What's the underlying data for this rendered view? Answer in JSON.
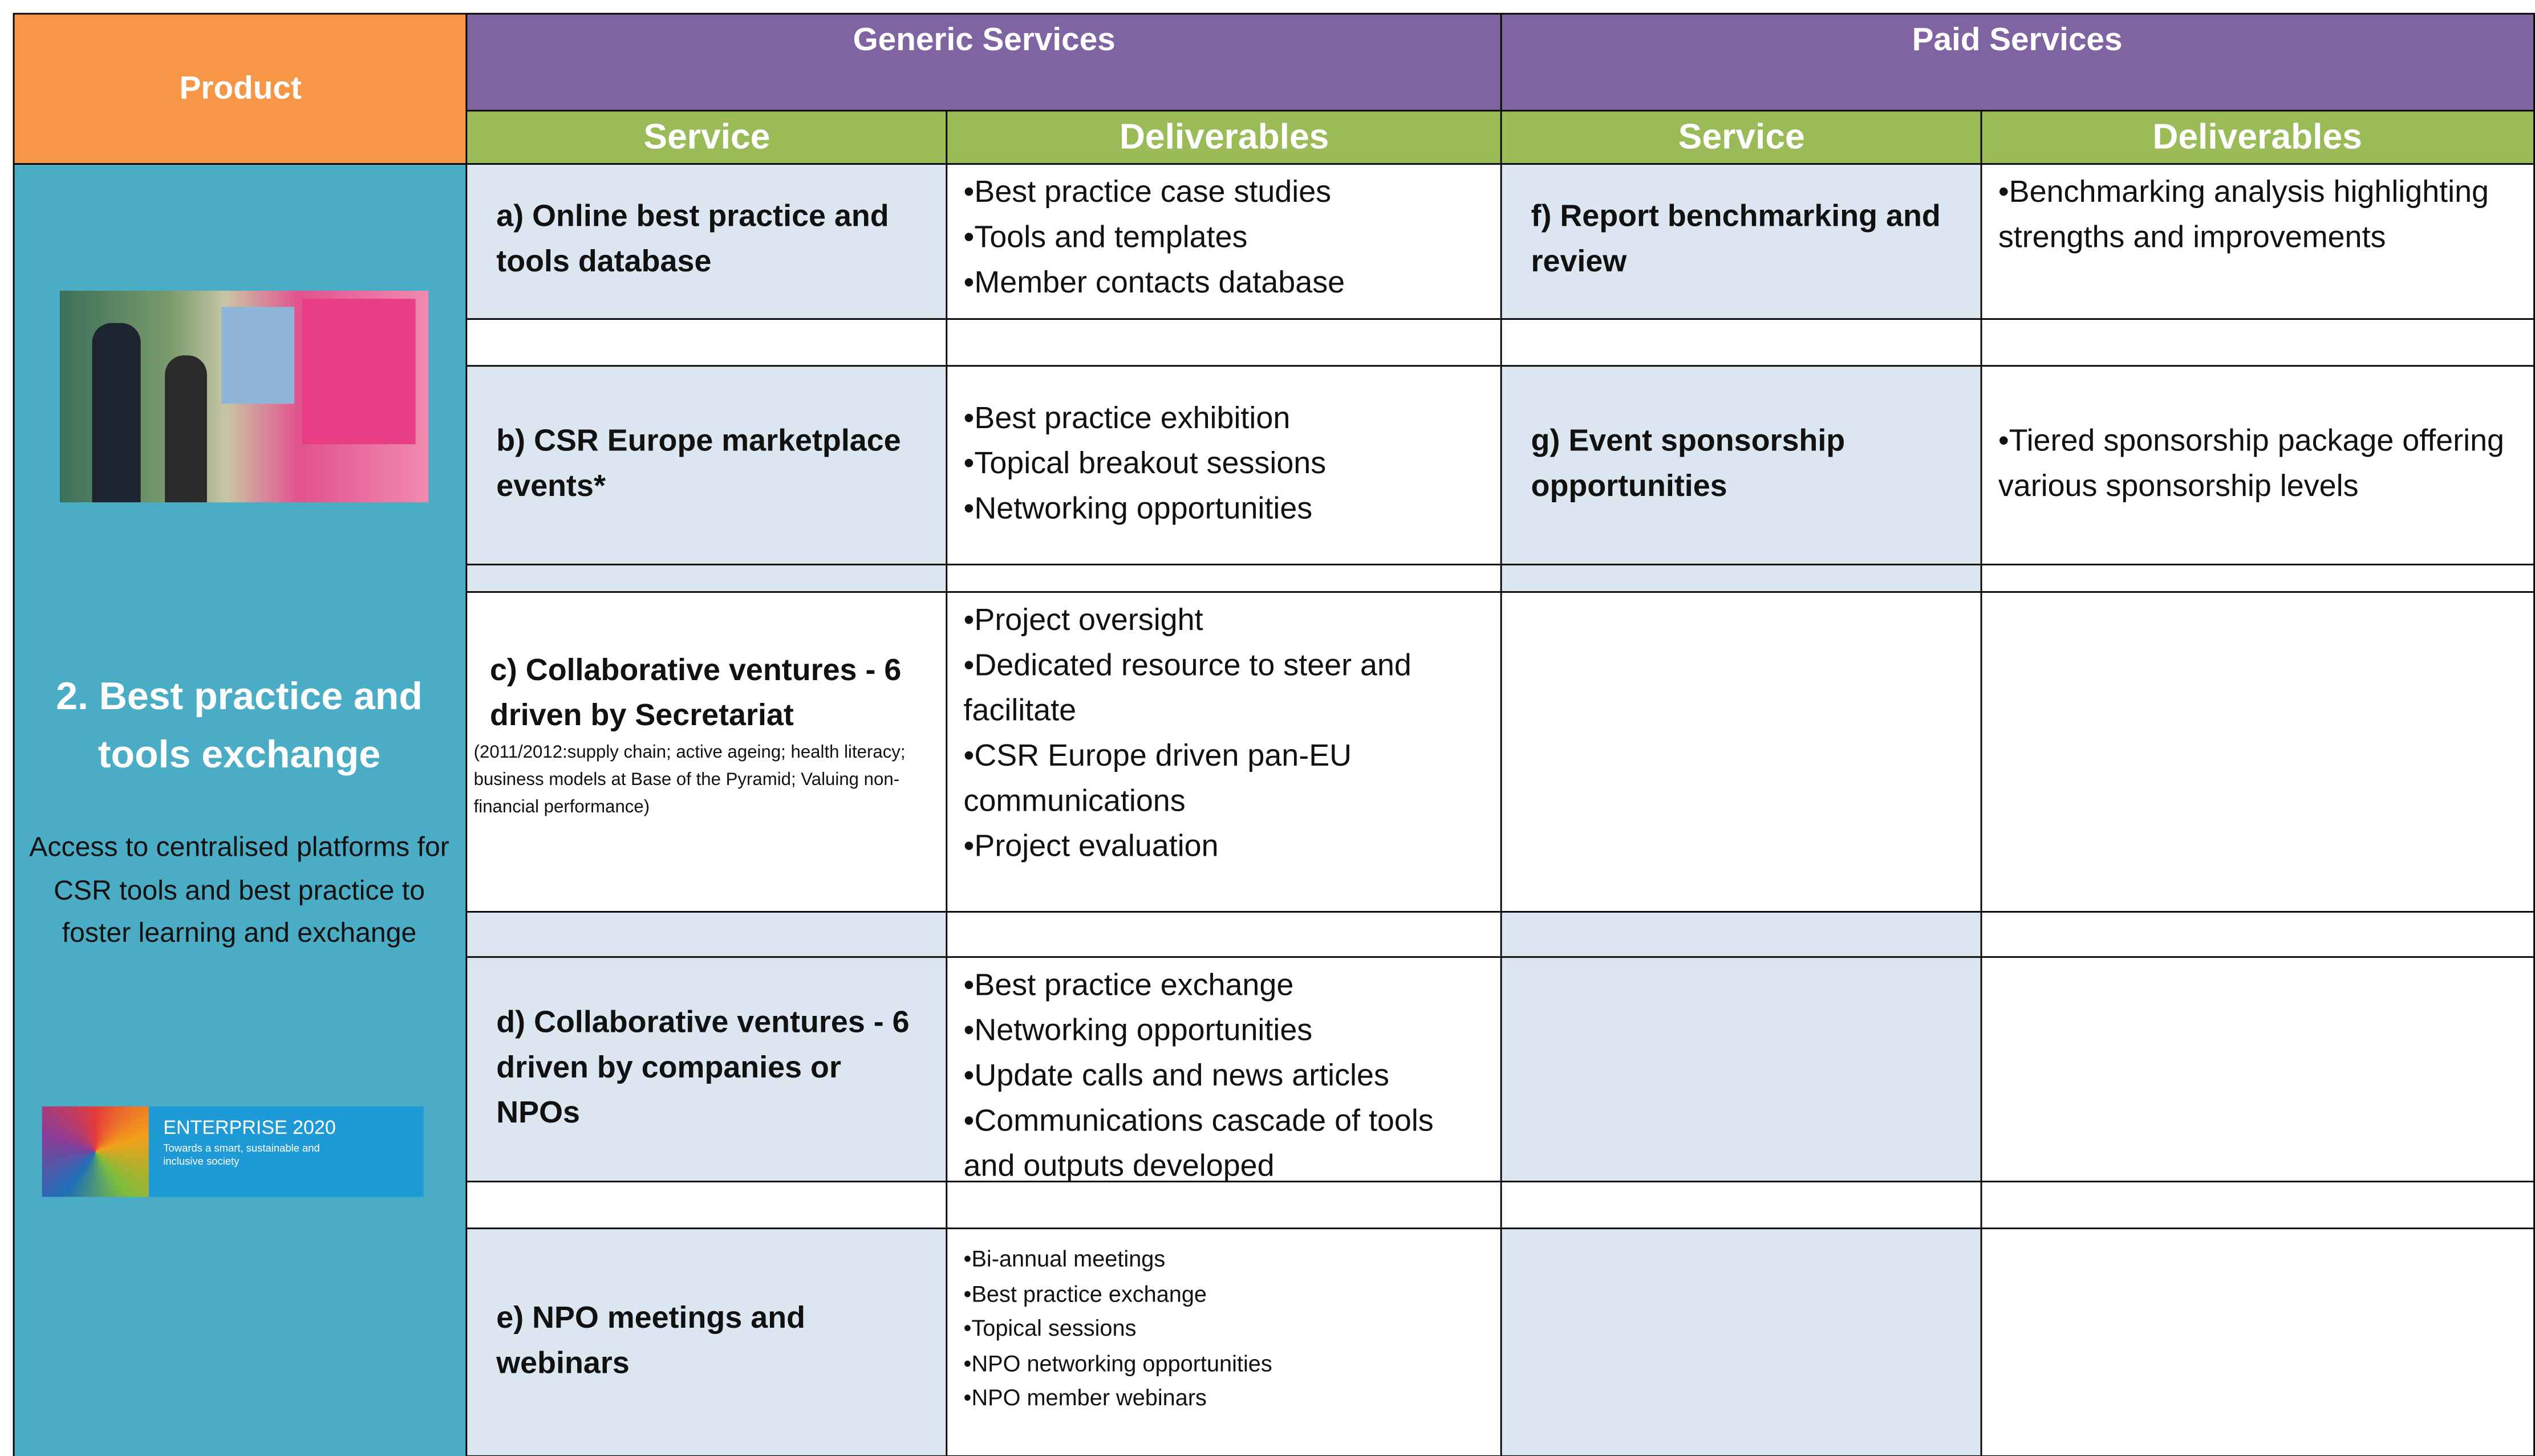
{
  "header": {
    "product": "Product",
    "generic": "Generic Services",
    "paid": "Paid Services",
    "columns": [
      "Service",
      "Deliverables",
      "Service",
      "Deliverables"
    ]
  },
  "product": {
    "title": "2. Best practice and tools exchange",
    "description": "Access to centralised platforms for CSR tools and best practice to foster learning and exchange",
    "banner": {
      "title": "ENTERPRISE 2020",
      "subtitle": "Towards a smart, sustainable and inclusive society"
    }
  },
  "rows": [
    {
      "service": "a) Online best practice and tools database",
      "deliverables": [
        "Best practice case studies",
        "Tools and templates",
        "Member contacts database"
      ],
      "paid_service": "f) Report benchmarking and review",
      "paid_deliverables": [
        "Benchmarking analysis highlighting strengths and improvements"
      ]
    },
    {
      "service": "b) CSR Europe marketplace events*",
      "deliverables": [
        "Best practice exhibition",
        "Topical breakout sessions",
        "Networking opportunities"
      ],
      "paid_service": "g) Event sponsorship opportunities",
      "paid_deliverables": [
        "Tiered sponsorship package offering various sponsorship levels"
      ]
    },
    {
      "service": "c) Collaborative ventures - 6 driven by Secretariat",
      "note": "(2011/2012:supply chain; active ageing; health literacy; business models at Base of the Pyramid; Valuing non-financial performance)",
      "deliverables": [
        "Project oversight",
        "Dedicated resource to steer and facilitate",
        "CSR Europe driven pan-EU communications",
        "Project evaluation"
      ]
    },
    {
      "service": "d) Collaborative ventures - 6 driven by companies or NPOs",
      "deliverables": [
        "Best practice exchange",
        "Networking opportunities",
        "Update calls and news articles",
        "Communications cascade of tools and outputs developed"
      ]
    },
    {
      "service": "e) NPO meetings and webinars",
      "deliverables": [
        "Bi-annual meetings",
        "Best practice exchange",
        "Topical sessions",
        "NPO networking opportunities",
        "NPO member webinars"
      ]
    }
  ]
}
